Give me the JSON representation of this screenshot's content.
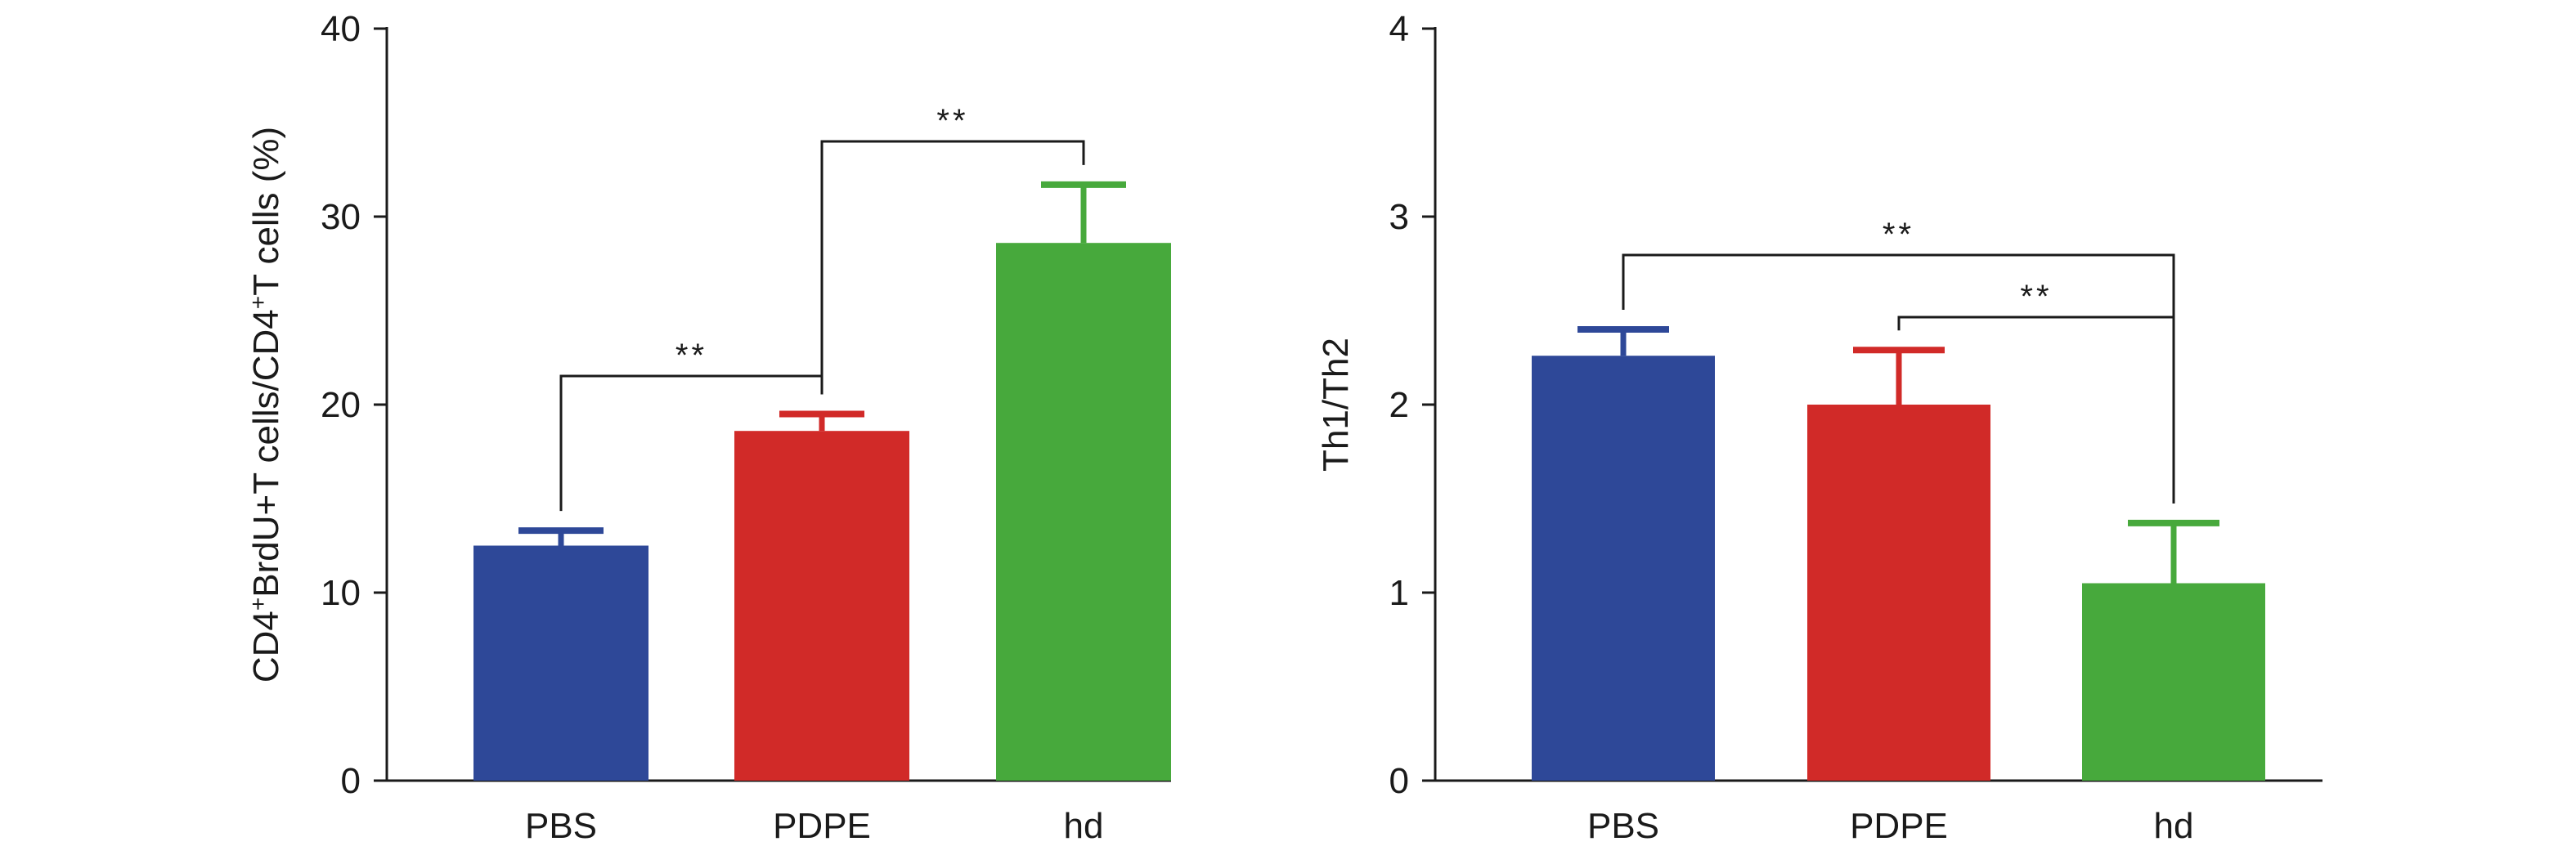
{
  "chart_data": [
    {
      "type": "bar",
      "ylabel_parts": [
        "CD4",
        "+",
        "BrdU+T cells/CD4",
        "+",
        "T cells (%)"
      ],
      "ylim": [
        0,
        40
      ],
      "yticks": [
        "0",
        "10",
        "20",
        "30",
        "40"
      ],
      "categories": [
        "PBS",
        "PDPE",
        "hd"
      ],
      "values": [
        12.5,
        18.6,
        28.6
      ],
      "errors": [
        0.8,
        0.9,
        3.1
      ],
      "colors": [
        "#2e4898",
        "#d12a28",
        "#47a93c"
      ],
      "significance": [
        {
          "from": 0,
          "to": 1,
          "label": "**"
        },
        {
          "from": 1,
          "to": 2,
          "label": "**"
        }
      ]
    },
    {
      "type": "bar",
      "ylabel_parts": [
        "Th1/Th2"
      ],
      "ylim": [
        0,
        4
      ],
      "yticks": [
        "0",
        "1",
        "2",
        "3",
        "4"
      ],
      "categories": [
        "PBS",
        "PDPE",
        "hd"
      ],
      "values": [
        2.26,
        2.0,
        1.05
      ],
      "errors": [
        0.14,
        0.29,
        0.32
      ],
      "colors": [
        "#2e4898",
        "#d12a28",
        "#47a93c"
      ],
      "significance": [
        {
          "from": 0,
          "to": 2,
          "label": "**"
        },
        {
          "from": 1,
          "to": 2,
          "label": "**"
        }
      ]
    }
  ]
}
